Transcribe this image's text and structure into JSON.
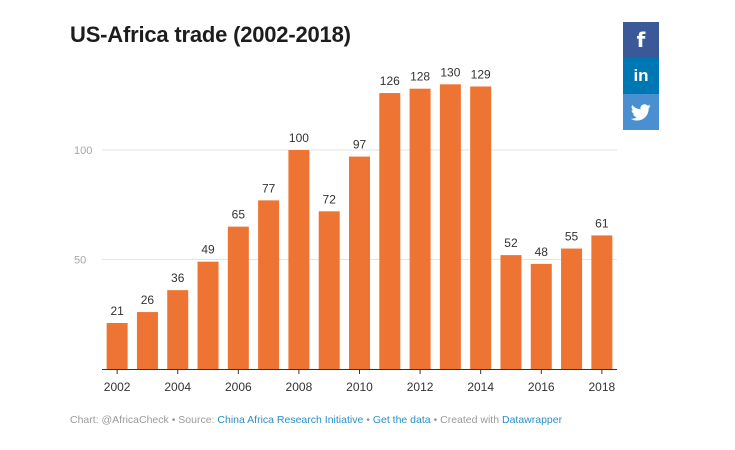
{
  "chart_data": {
    "type": "bar",
    "title": "US-Africa trade (2002-2018)",
    "categories": [
      "2002",
      "2003",
      "2004",
      "2005",
      "2006",
      "2007",
      "2008",
      "2009",
      "2010",
      "2011",
      "2012",
      "2013",
      "2014",
      "2015",
      "2016",
      "2017",
      "2018"
    ],
    "values": [
      21,
      26,
      36,
      49,
      65,
      77,
      100,
      72,
      97,
      126,
      128,
      130,
      129,
      52,
      48,
      55,
      61
    ],
    "x_tick_labels": [
      "2002",
      "2004",
      "2006",
      "2008",
      "2010",
      "2012",
      "2014",
      "2016",
      "2018"
    ],
    "y_ticks": [
      50,
      100
    ],
    "ylim": [
      0,
      135
    ],
    "grid": true,
    "bar_color": "#ee7433",
    "xlabel": "",
    "ylabel": ""
  },
  "share": {
    "facebook_icon": "facebook-icon",
    "linkedin_icon": "linkedin-icon",
    "twitter_icon": "twitter-icon",
    "facebook_glyph": "f",
    "linkedin_glyph": "in",
    "colors": {
      "facebook": "#3b5998",
      "linkedin": "#0077b5",
      "twitter": "#4a90d0"
    }
  },
  "footer": {
    "prefix": "Chart: @AfricaCheck • Source: ",
    "source_link": "China Africa Research Initiative",
    "sep1": " • ",
    "data_link": "Get the data",
    "sep2": " • Created with ",
    "tool_link": "Datawrapper"
  }
}
